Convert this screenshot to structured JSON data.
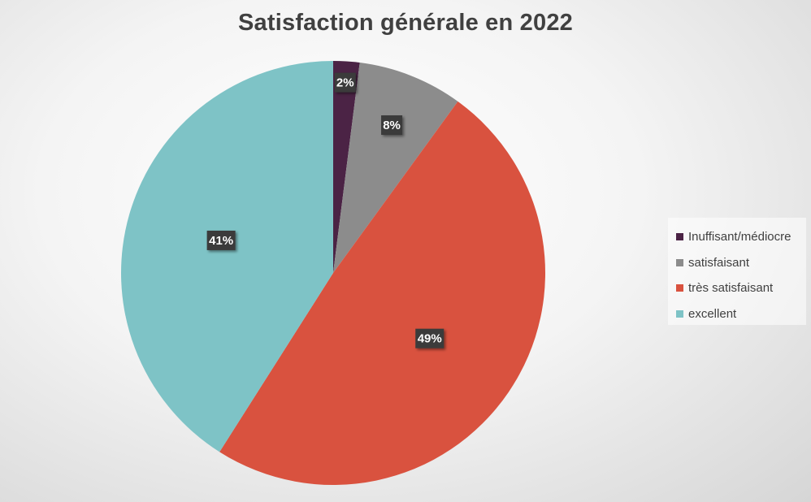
{
  "chart_data": {
    "type": "pie",
    "title": "Satisfaction générale en 2022",
    "categories": [
      "Inuffisant/médiocre",
      "satisfaisant",
      "très satisfaisant",
      "excellent"
    ],
    "values": [
      2,
      8,
      49,
      41
    ],
    "data_labels": [
      "2%",
      "8%",
      "49%",
      "41%"
    ],
    "colors": [
      "#4b2345",
      "#8c8c8c",
      "#d9523f",
      "#7ec3c6"
    ],
    "legend_position": "right",
    "start_angle_deg": 0,
    "direction": "clockwise"
  }
}
